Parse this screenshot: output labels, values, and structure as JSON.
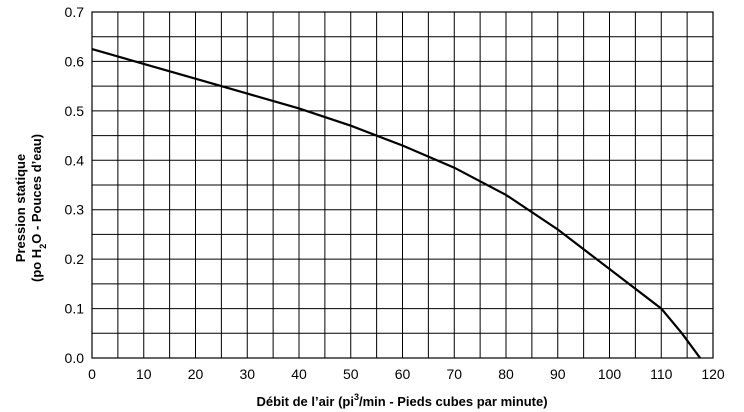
{
  "chart_data": {
    "type": "line",
    "xlabel_parts": [
      "Débit de l’air (pi",
      "3",
      "/min - Pieds cubes par minute)"
    ],
    "ylabel_line1": "Pression statique",
    "ylabel_line2_parts": [
      "(po H",
      "2",
      "O - Pouces d’eau)"
    ],
    "xlim": [
      0,
      120
    ],
    "ylim": [
      0,
      0.7
    ],
    "x_ticks": [
      "0",
      "10",
      "20",
      "30",
      "40",
      "50",
      "60",
      "70",
      "80",
      "90",
      "100",
      "110",
      "120"
    ],
    "y_ticks": [
      "0.0",
      "0.1",
      "0.2",
      "0.3",
      "0.4",
      "0.5",
      "0.6",
      "0.7"
    ],
    "x_minor_step": 5,
    "y_minor_step": 0.05,
    "grid": true,
    "line_color": "#000000",
    "series": [
      {
        "x": [
          0,
          10,
          20,
          30,
          40,
          50,
          60,
          70,
          80,
          90,
          100,
          105,
          110,
          114,
          117.5
        ],
        "y": [
          0.625,
          0.595,
          0.565,
          0.535,
          0.505,
          0.47,
          0.43,
          0.385,
          0.33,
          0.26,
          0.18,
          0.14,
          0.1,
          0.05,
          0.0
        ]
      }
    ]
  }
}
